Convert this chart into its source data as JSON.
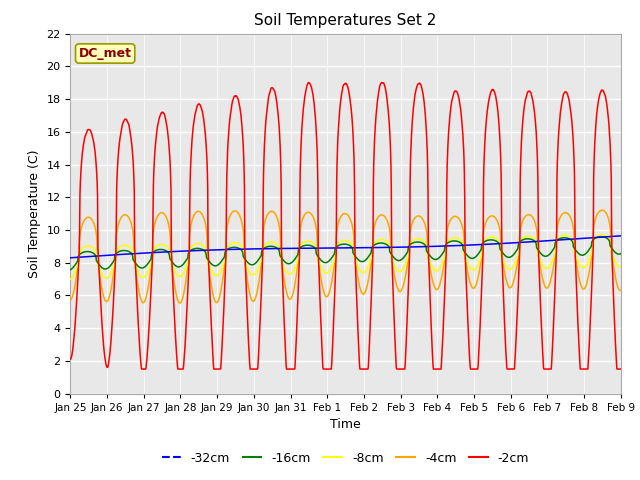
{
  "title": "Soil Temperatures Set 2",
  "xlabel": "Time",
  "ylabel": "Soil Temperature (C)",
  "ylim": [
    0,
    22
  ],
  "yticks": [
    0,
    2,
    4,
    6,
    8,
    10,
    12,
    14,
    16,
    18,
    20,
    22
  ],
  "x_labels": [
    "Jan 25",
    "Jan 26",
    "Jan 27",
    "Jan 28",
    "Jan 29",
    "Jan 30",
    "Jan 31",
    "Feb 1",
    "Feb 2",
    "Feb 3",
    "Feb 4",
    "Feb 5",
    "Feb 6",
    "Feb 7",
    "Feb 8",
    "Feb 9"
  ],
  "annotation": "DC_met",
  "bg_color": "#e0e0e0",
  "series_colors": {
    "-32cm": "blue",
    "-16cm": "green",
    "-8cm": "yellow",
    "-4cm": "orange",
    "-2cm": "red"
  },
  "n_points": 1440
}
